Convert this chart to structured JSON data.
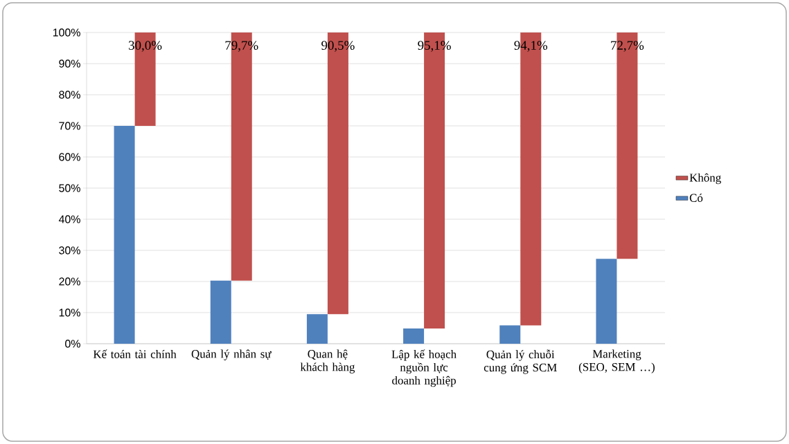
{
  "chart_data": {
    "type": "bar",
    "categories": [
      "Kế toán tài chính",
      "Quản lý nhân sự",
      "Quan hệ khách hàng",
      "Lập kế hoạch nguồn lực doanh nghiệp",
      "Quản lý chuỗi cung ứng SCM",
      "Marketing (SEO, SEM …)"
    ],
    "series": [
      {
        "name": "Có",
        "color": "#4f81bd",
        "values": [
          70,
          20.3,
          9.5,
          4.9,
          5.9,
          27.3
        ]
      },
      {
        "name": "Không",
        "color": "#c0504d",
        "values": [
          30.0,
          79.7,
          90.5,
          95.1,
          94.1,
          72.7
        ],
        "base": [
          70,
          20.3,
          9.5,
          4.9,
          5.9,
          27.3
        ],
        "value_labels": [
          "30,0%",
          "79,7%",
          "90,5%",
          "95,1%",
          "94,1%",
          "72,7%"
        ]
      }
    ],
    "ylim": [
      0,
      100
    ],
    "yticks": [
      {
        "value": 0,
        "label": "0%"
      },
      {
        "value": 10,
        "label": "10%"
      },
      {
        "value": 20,
        "label": "20%"
      },
      {
        "value": 30,
        "label": "30%"
      },
      {
        "value": 40,
        "label": "40%"
      },
      {
        "value": 50,
        "label": "50%"
      },
      {
        "value": 60,
        "label": "60%"
      },
      {
        "value": 70,
        "label": "70%"
      },
      {
        "value": 80,
        "label": "80%"
      },
      {
        "value": 90,
        "label": "90%"
      },
      {
        "value": 100,
        "label": "100%"
      }
    ],
    "grid": "y",
    "legend": "right"
  }
}
